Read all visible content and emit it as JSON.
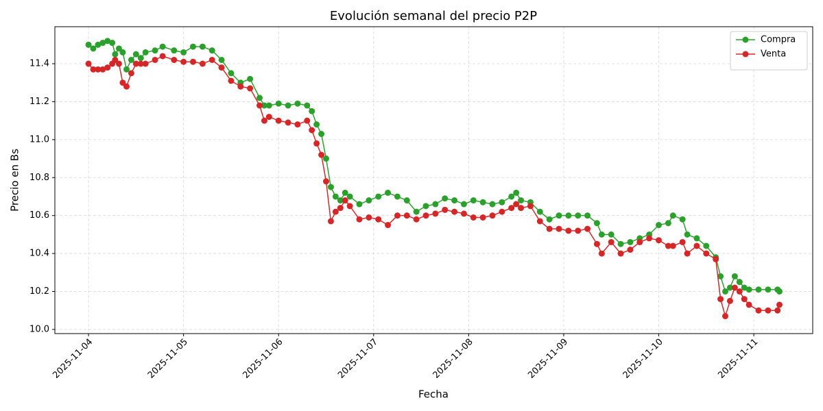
{
  "chart_data": {
    "type": "line",
    "title": "Evolución semanal del precio P2P",
    "x_label": "Fecha",
    "y_label": "Precio en Bs",
    "x": [
      4.0,
      4.05,
      4.1,
      4.15,
      4.2,
      4.25,
      4.28,
      4.32,
      4.36,
      4.4,
      4.45,
      4.5,
      4.55,
      4.6,
      4.7,
      4.78,
      4.9,
      5.0,
      5.1,
      5.2,
      5.3,
      5.4,
      5.5,
      5.6,
      5.7,
      5.8,
      5.85,
      5.9,
      6.0,
      6.1,
      6.2,
      6.3,
      6.35,
      6.4,
      6.45,
      6.5,
      6.55,
      6.6,
      6.65,
      6.7,
      6.75,
      6.85,
      6.95,
      7.05,
      7.15,
      7.25,
      7.35,
      7.45,
      7.55,
      7.65,
      7.75,
      7.85,
      7.95,
      8.05,
      8.15,
      8.25,
      8.35,
      8.45,
      8.5,
      8.55,
      8.65,
      8.75,
      8.85,
      8.95,
      9.05,
      9.15,
      9.25,
      9.35,
      9.4,
      9.5,
      9.6,
      9.7,
      9.8,
      9.9,
      10.0,
      10.1,
      10.15,
      10.25,
      10.3,
      10.4,
      10.5,
      10.6,
      10.65,
      10.7,
      10.75,
      10.8,
      10.85,
      10.9,
      10.95,
      11.05,
      11.15,
      11.25,
      11.27
    ],
    "series": [
      {
        "name": "Compra",
        "color": "#2ca02c",
        "values": [
          11.5,
          11.48,
          11.5,
          11.51,
          11.52,
          11.51,
          11.45,
          11.48,
          11.46,
          11.37,
          11.42,
          11.45,
          11.43,
          11.46,
          11.47,
          11.49,
          11.47,
          11.46,
          11.49,
          11.49,
          11.47,
          11.42,
          11.35,
          11.3,
          11.32,
          11.22,
          11.18,
          11.18,
          11.19,
          11.18,
          11.19,
          11.18,
          11.15,
          11.08,
          11.03,
          10.9,
          10.75,
          10.7,
          10.68,
          10.72,
          10.7,
          10.66,
          10.68,
          10.7,
          10.72,
          10.7,
          10.68,
          10.62,
          10.65,
          10.66,
          10.69,
          10.68,
          10.66,
          10.68,
          10.67,
          10.66,
          10.67,
          10.7,
          10.72,
          10.68,
          10.67,
          10.62,
          10.58,
          10.6,
          10.6,
          10.6,
          10.6,
          10.56,
          10.5,
          10.5,
          10.45,
          10.46,
          10.48,
          10.5,
          10.55,
          10.56,
          10.6,
          10.58,
          10.5,
          10.48,
          10.44,
          10.38,
          10.28,
          10.2,
          10.22,
          10.28,
          10.25,
          10.22,
          10.21,
          10.21,
          10.21,
          10.21,
          10.2
        ]
      },
      {
        "name": "Venta",
        "color": "#d62728",
        "values": [
          11.4,
          11.37,
          11.37,
          11.37,
          11.38,
          11.4,
          11.42,
          11.4,
          11.3,
          11.28,
          11.35,
          11.4,
          11.4,
          11.4,
          11.42,
          11.44,
          11.42,
          11.41,
          11.41,
          11.4,
          11.42,
          11.38,
          11.31,
          11.28,
          11.27,
          11.18,
          11.1,
          11.12,
          11.1,
          11.09,
          11.08,
          11.1,
          11.05,
          10.98,
          10.92,
          10.78,
          10.57,
          10.62,
          10.64,
          10.68,
          10.65,
          10.58,
          10.59,
          10.58,
          10.55,
          10.6,
          10.6,
          10.58,
          10.6,
          10.61,
          10.63,
          10.62,
          10.61,
          10.59,
          10.59,
          10.6,
          10.62,
          10.64,
          10.66,
          10.64,
          10.65,
          10.57,
          10.53,
          10.53,
          10.52,
          10.52,
          10.53,
          10.45,
          10.4,
          10.46,
          10.4,
          10.42,
          10.46,
          10.48,
          10.47,
          10.44,
          10.44,
          10.46,
          10.4,
          10.44,
          10.4,
          10.37,
          10.16,
          10.07,
          10.15,
          10.22,
          10.2,
          10.16,
          10.13,
          10.1,
          10.1,
          10.1,
          10.13
        ]
      }
    ],
    "xlim": [
      3.646,
      11.62
    ],
    "xticks": [
      {
        "value": 4,
        "label": "2025-11-04"
      },
      {
        "value": 5,
        "label": "2025-11-05"
      },
      {
        "value": 6,
        "label": "2025-11-06"
      },
      {
        "value": 7,
        "label": "2025-11-07"
      },
      {
        "value": 8,
        "label": "2025-11-08"
      },
      {
        "value": 9,
        "label": "2025-11-09"
      },
      {
        "value": 10,
        "label": "2025-11-10"
      },
      {
        "value": 11,
        "label": "2025-11-11"
      }
    ],
    "ylim": [
      9.978,
      11.595
    ],
    "yticks": [
      {
        "value": 10.0,
        "label": "10.0"
      },
      10.2,
      10.4,
      10.6,
      10.8,
      {
        "value": 11.0,
        "label": "11.0"
      },
      11.2,
      11.4
    ],
    "grid": true,
    "legend": "upper right"
  }
}
